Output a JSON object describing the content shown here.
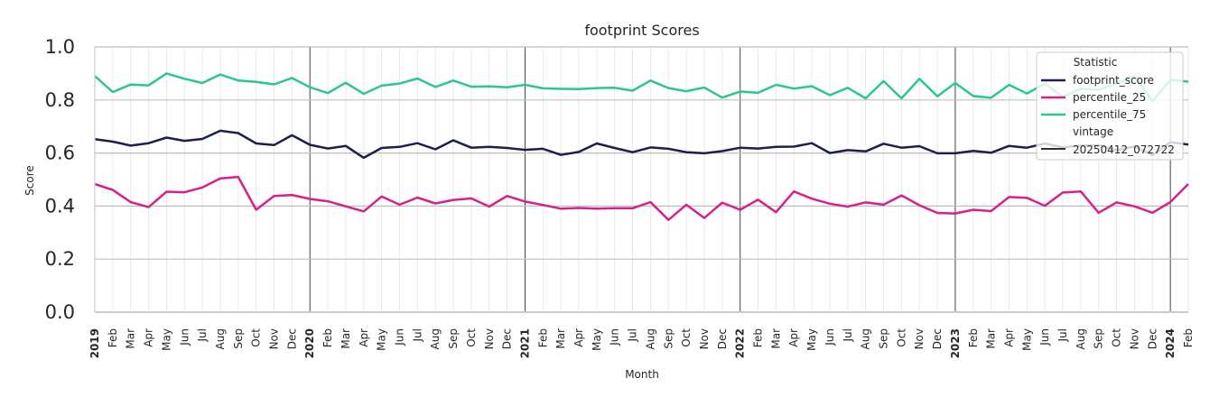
{
  "chart_data": {
    "type": "line",
    "title": "footprint Scores",
    "xlabel": "Month",
    "ylabel": "Score",
    "ylim": [
      0,
      1
    ],
    "yticks": [
      "0.0",
      "0.2",
      "0.4",
      "0.6",
      "0.8",
      "1.0"
    ],
    "grid": true,
    "legend_position": "top-right",
    "x_tick_labels": [
      "2019",
      "Feb",
      "Mar",
      "Apr",
      "May",
      "Jun",
      "Jul",
      "Aug",
      "Sep",
      "Oct",
      "Nov",
      "Dec",
      "2020",
      "Feb",
      "Mar",
      "Apr",
      "May",
      "Jun",
      "Jul",
      "Aug",
      "Sep",
      "Oct",
      "Nov",
      "Dec",
      "2021",
      "Feb",
      "Mar",
      "Apr",
      "May",
      "Jun",
      "Jul",
      "Aug",
      "Sep",
      "Oct",
      "Nov",
      "Dec",
      "2022",
      "Feb",
      "Mar",
      "Apr",
      "May",
      "Jun",
      "Jul",
      "Aug",
      "Sep",
      "Oct",
      "Nov",
      "Dec",
      "2023",
      "Feb",
      "Mar",
      "Apr",
      "May",
      "Jun",
      "Jul",
      "Aug",
      "Sep",
      "Oct",
      "Nov",
      "Dec",
      "2024",
      "Feb"
    ],
    "legend": {
      "title": "Statistic",
      "vintage_title": "vintage",
      "vintage_label": "20250412_072722"
    },
    "series": [
      {
        "name": "footprint_score",
        "color": "#1b1f4f",
        "values": [
          0.652,
          0.643,
          0.628,
          0.637,
          0.658,
          0.646,
          0.653,
          0.684,
          0.675,
          0.636,
          0.63,
          0.667,
          0.631,
          0.617,
          0.627,
          0.582,
          0.619,
          0.623,
          0.637,
          0.614,
          0.648,
          0.62,
          0.623,
          0.619,
          0.612,
          0.616,
          0.593,
          0.604,
          0.636,
          0.619,
          0.603,
          0.621,
          0.616,
          0.603,
          0.599,
          0.607,
          0.62,
          0.617,
          0.623,
          0.624,
          0.637,
          0.6,
          0.611,
          0.606,
          0.635,
          0.62,
          0.626,
          0.599,
          0.599,
          0.608,
          0.601,
          0.627,
          0.62,
          0.636,
          0.621,
          0.628,
          0.629,
          0.611,
          0.625,
          0.592,
          0.641,
          0.632
        ]
      },
      {
        "name": "percentile_25",
        "color": "#d6218a",
        "values": [
          0.483,
          0.461,
          0.415,
          0.396,
          0.454,
          0.452,
          0.47,
          0.504,
          0.51,
          0.386,
          0.438,
          0.442,
          0.427,
          0.418,
          0.399,
          0.38,
          0.436,
          0.405,
          0.432,
          0.41,
          0.423,
          0.429,
          0.398,
          0.438,
          0.417,
          0.404,
          0.39,
          0.393,
          0.39,
          0.392,
          0.392,
          0.415,
          0.348,
          0.405,
          0.355,
          0.413,
          0.386,
          0.424,
          0.377,
          0.455,
          0.428,
          0.409,
          0.398,
          0.414,
          0.405,
          0.44,
          0.403,
          0.374,
          0.372,
          0.386,
          0.381,
          0.434,
          0.431,
          0.401,
          0.451,
          0.455,
          0.375,
          0.414,
          0.399,
          0.375,
          0.415,
          0.483
        ]
      },
      {
        "name": "percentile_75",
        "color": "#2cc68e",
        "values": [
          0.89,
          0.83,
          0.858,
          0.855,
          0.9,
          0.88,
          0.864,
          0.896,
          0.873,
          0.868,
          0.859,
          0.883,
          0.848,
          0.826,
          0.865,
          0.823,
          0.854,
          0.862,
          0.881,
          0.849,
          0.873,
          0.85,
          0.851,
          0.848,
          0.857,
          0.844,
          0.842,
          0.841,
          0.845,
          0.846,
          0.835,
          0.873,
          0.845,
          0.833,
          0.847,
          0.809,
          0.832,
          0.827,
          0.857,
          0.843,
          0.852,
          0.818,
          0.846,
          0.806,
          0.871,
          0.806,
          0.88,
          0.814,
          0.864,
          0.815,
          0.808,
          0.857,
          0.824,
          0.862,
          0.812,
          0.843,
          0.838,
          0.862,
          0.89,
          0.795,
          0.876,
          0.869
        ]
      }
    ]
  }
}
